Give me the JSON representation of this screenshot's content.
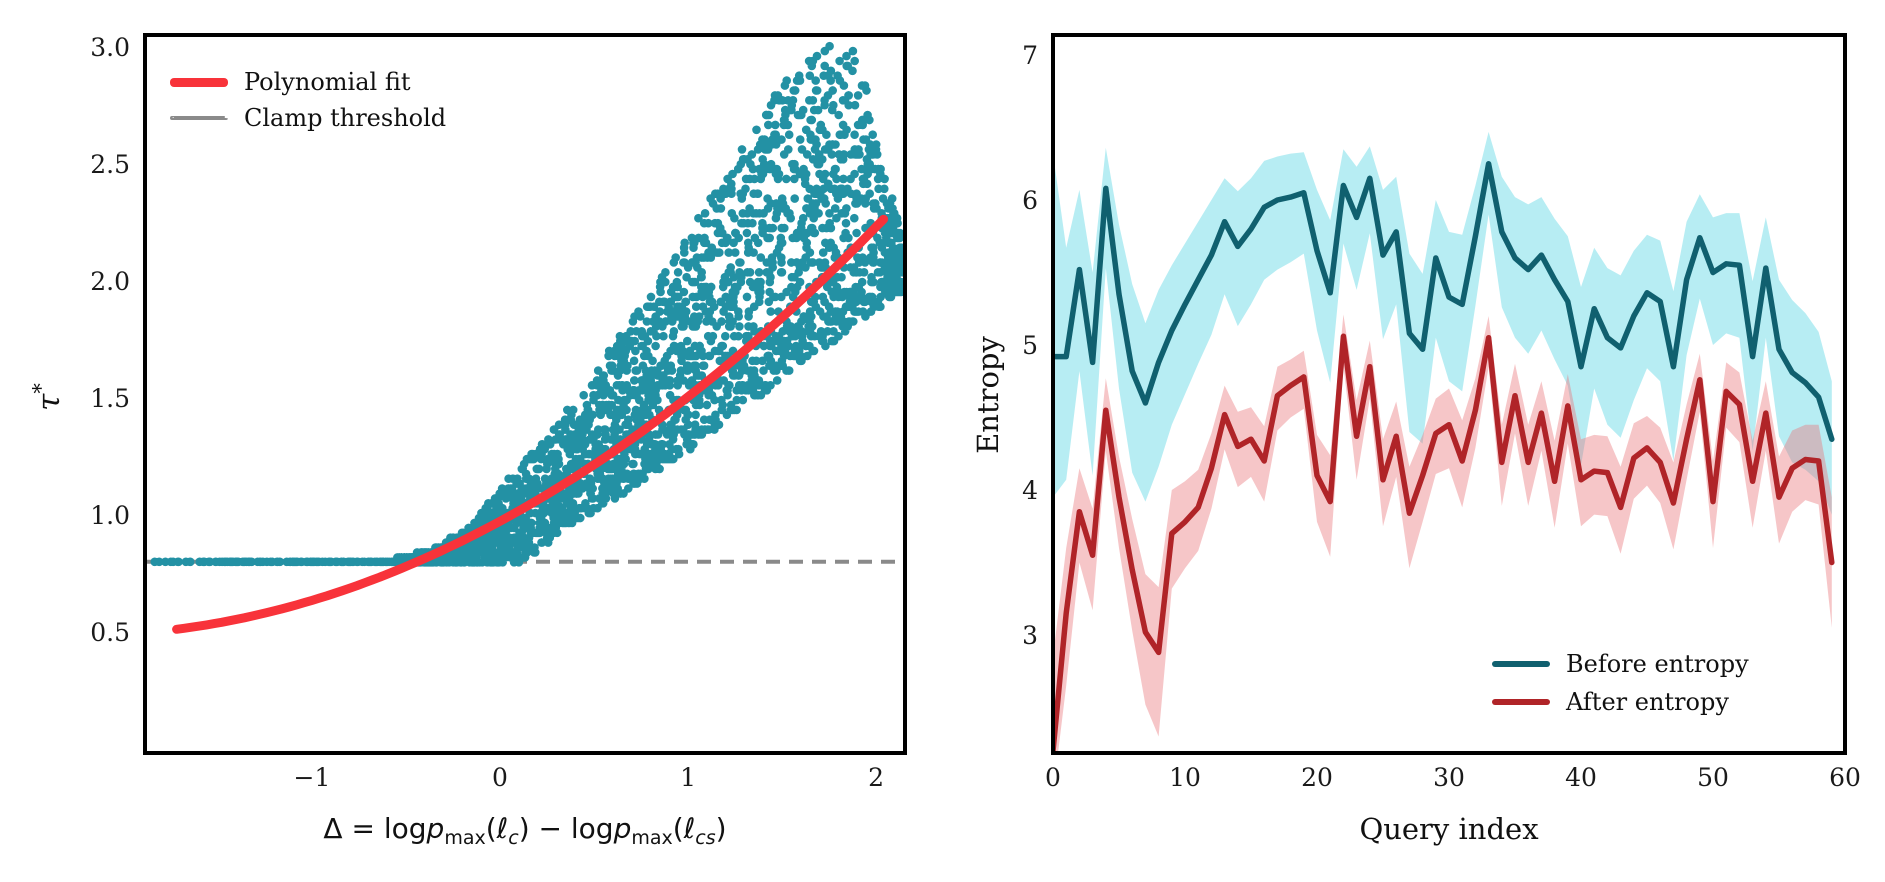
{
  "figure": {
    "background": "#ffffff"
  },
  "colors": {
    "scatter_dot": "#2391A4",
    "fit_line": "#F8333A",
    "clamp_dash": "#8A8A8A",
    "before_line": "#10606F",
    "before_band": "rgba(95,216,228,0.45)",
    "after_line": "#B02428",
    "after_band": "rgba(233,119,124,0.42)",
    "spine": "#000000",
    "tick_text": "#1a1a1a"
  },
  "chart_data": [
    {
      "type": "scatter",
      "title": "",
      "xlabel_segments": [
        {
          "t": "Δ = log",
          "s": "norm"
        },
        {
          "t": "p",
          "s": "it"
        },
        {
          "t": "max",
          "s": "sub"
        },
        {
          "t": "(",
          "s": "norm"
        },
        {
          "t": "ℓ",
          "s": "it"
        },
        {
          "t": "c",
          "s": "subit"
        },
        {
          "t": ") − log",
          "s": "norm"
        },
        {
          "t": "p",
          "s": "it"
        },
        {
          "t": "max",
          "s": "sub"
        },
        {
          "t": "(",
          "s": "norm"
        },
        {
          "t": "ℓ",
          "s": "it"
        },
        {
          "t": "cs",
          "s": "subit"
        },
        {
          "t": ")",
          "s": "norm"
        }
      ],
      "ylabel_segments": [
        {
          "t": "τ",
          "s": "norm"
        },
        {
          "t": "*",
          "s": "sup"
        }
      ],
      "xlim": [
        -1.888,
        2.154
      ],
      "ylim": [
        -0.017,
        3.051
      ],
      "xticks": [
        {
          "v": -1,
          "label": "−1"
        },
        {
          "v": 0,
          "label": "0"
        },
        {
          "v": 1,
          "label": "1"
        },
        {
          "v": 2,
          "label": "2"
        }
      ],
      "yticks": [
        {
          "v": 0.5,
          "label": "0.5"
        },
        {
          "v": 1.0,
          "label": "1.0"
        },
        {
          "v": 1.5,
          "label": "1.5"
        },
        {
          "v": 2.0,
          "label": "2.0"
        },
        {
          "v": 2.5,
          "label": "2.5"
        },
        {
          "v": 3.0,
          "label": "3.0"
        }
      ],
      "legend": [
        {
          "label": "Polynomial fit",
          "kind": "solid-red"
        },
        {
          "label": "Clamp threshold",
          "kind": "dashed-gray"
        }
      ],
      "clamp_threshold": 0.8,
      "fit_curve": {
        "coeffs": [
          0.973,
          0.435,
          0.097
        ],
        "domain": [
          -1.72,
          2.06
        ]
      },
      "scatter_cloud": {
        "seed": 1337,
        "n_fan": 2600,
        "n_clamp": 235,
        "dot_radius": 4.3,
        "tau_quantum": 0.021,
        "clamp_x_range": [
          -1.87,
          -0.2
        ],
        "fan_x_range": [
          -0.55,
          2.15
        ],
        "upper_envelope": [
          [
            -0.55,
            0.81
          ],
          [
            -0.35,
            0.86
          ],
          [
            -0.15,
            0.95
          ],
          [
            0,
            1.12
          ],
          [
            0.3,
            1.38
          ],
          [
            0.6,
            1.72
          ],
          [
            0.9,
            2.06
          ],
          [
            1.2,
            2.46
          ],
          [
            1.5,
            2.84
          ],
          [
            1.7,
            3.0
          ],
          [
            1.9,
            3.0
          ],
          [
            2.0,
            2.62
          ],
          [
            2.1,
            2.32
          ],
          [
            2.15,
            2.12
          ]
        ],
        "lower_envelope": [
          [
            -0.55,
            0.8
          ],
          [
            0.12,
            0.8
          ],
          [
            0.3,
            0.92
          ],
          [
            0.6,
            1.07
          ],
          [
            0.9,
            1.22
          ],
          [
            1.2,
            1.4
          ],
          [
            1.5,
            1.58
          ],
          [
            1.8,
            1.76
          ],
          [
            2.0,
            1.88
          ],
          [
            2.15,
            1.97
          ]
        ]
      }
    },
    {
      "type": "line",
      "title": "",
      "xlabel": "Query index",
      "ylabel": "Entropy",
      "xlim": [
        0,
        60
      ],
      "ylim": [
        2.186,
        7.138
      ],
      "xticks": [
        {
          "v": 0,
          "label": "0"
        },
        {
          "v": 10,
          "label": "10"
        },
        {
          "v": 20,
          "label": "20"
        },
        {
          "v": 30,
          "label": "30"
        },
        {
          "v": 40,
          "label": "40"
        },
        {
          "v": 50,
          "label": "50"
        },
        {
          "v": 60,
          "label": "60"
        }
      ],
      "yticks": [
        {
          "v": 3,
          "label": "3"
        },
        {
          "v": 4,
          "label": "4"
        },
        {
          "v": 5,
          "label": "5"
        },
        {
          "v": 6,
          "label": "6"
        },
        {
          "v": 7,
          "label": "7"
        }
      ],
      "legend": [
        {
          "label": "Before entropy",
          "kind": "solid-teal"
        },
        {
          "label": "After entropy",
          "kind": "solid-darkred"
        }
      ],
      "x": [
        0,
        1,
        2,
        3,
        4,
        5,
        6,
        7,
        8,
        9,
        10,
        11,
        12,
        13,
        14,
        15,
        16,
        17,
        18,
        19,
        20,
        21,
        22,
        23,
        24,
        25,
        26,
        27,
        28,
        29,
        30,
        31,
        32,
        33,
        34,
        35,
        36,
        37,
        38,
        39,
        40,
        41,
        42,
        43,
        44,
        45,
        46,
        47,
        48,
        49,
        50,
        51,
        52,
        53,
        54,
        55,
        56,
        57,
        58,
        59
      ],
      "series": [
        {
          "name": "Before entropy",
          "values": [
            4.92,
            4.92,
            5.52,
            4.88,
            6.08,
            5.35,
            4.82,
            4.6,
            4.88,
            5.1,
            5.28,
            5.45,
            5.62,
            5.85,
            5.68,
            5.8,
            5.95,
            6.0,
            6.02,
            6.05,
            5.65,
            5.36,
            6.1,
            5.88,
            6.15,
            5.62,
            5.78,
            5.08,
            4.97,
            5.6,
            5.33,
            5.28,
            5.75,
            6.25,
            5.78,
            5.6,
            5.52,
            5.62,
            5.45,
            5.3,
            4.85,
            5.25,
            5.05,
            4.98,
            5.2,
            5.36,
            5.3,
            4.85,
            5.45,
            5.74,
            5.5,
            5.56,
            5.55,
            4.92,
            5.53,
            4.97,
            4.81,
            4.74,
            4.64,
            4.35
          ],
          "band_upper_offset": [
            1.4,
            0.75,
            0.55,
            0.62,
            0.28,
            0.48,
            0.6,
            0.55,
            0.5,
            0.45,
            0.42,
            0.4,
            0.38,
            0.3,
            0.38,
            0.35,
            0.32,
            0.3,
            0.3,
            0.28,
            0.42,
            0.5,
            0.25,
            0.35,
            0.22,
            0.45,
            0.38,
            0.55,
            0.52,
            0.4,
            0.45,
            0.48,
            0.35,
            0.22,
            0.38,
            0.42,
            0.45,
            0.4,
            0.42,
            0.45,
            0.55,
            0.42,
            0.48,
            0.5,
            0.45,
            0.4,
            0.42,
            0.52,
            0.4,
            0.3,
            0.38,
            0.35,
            0.36,
            0.52,
            0.35,
            0.48,
            0.5,
            0.48,
            0.45,
            0.4
          ],
          "band_lower_offset": [
            0.97,
            0.85,
            0.7,
            0.78,
            0.55,
            0.65,
            0.7,
            0.68,
            0.72,
            0.65,
            0.62,
            0.58,
            0.55,
            0.5,
            0.55,
            0.52,
            0.5,
            0.48,
            0.45,
            0.42,
            0.55,
            0.62,
            0.4,
            0.5,
            0.38,
            0.58,
            0.5,
            0.68,
            0.65,
            0.55,
            0.58,
            0.6,
            0.48,
            0.35,
            0.52,
            0.55,
            0.58,
            0.52,
            0.55,
            0.58,
            0.68,
            0.55,
            0.6,
            0.62,
            0.58,
            0.52,
            0.55,
            0.65,
            0.52,
            0.42,
            0.5,
            0.48,
            0.5,
            0.65,
            0.48,
            0.6,
            0.62,
            0.6,
            0.58,
            0.52
          ]
        },
        {
          "name": "After entropy",
          "values": [
            2.2,
            3.15,
            3.85,
            3.55,
            4.55,
            3.95,
            3.45,
            3.02,
            2.88,
            3.7,
            3.78,
            3.88,
            4.15,
            4.52,
            4.3,
            4.35,
            4.2,
            4.65,
            4.72,
            4.78,
            4.1,
            3.92,
            5.06,
            4.37,
            4.85,
            4.07,
            4.37,
            3.84,
            4.1,
            4.39,
            4.45,
            4.2,
            4.55,
            5.05,
            4.19,
            4.65,
            4.19,
            4.53,
            4.06,
            4.58,
            4.07,
            4.13,
            4.12,
            3.88,
            4.22,
            4.29,
            4.19,
            3.91,
            4.35,
            4.76,
            3.92,
            4.68,
            4.59,
            4.06,
            4.53,
            3.95,
            4.15,
            4.21,
            4.2,
            3.5
          ],
          "band_upper_offset": [
            0.65,
            0.45,
            0.3,
            0.32,
            0.22,
            0.28,
            0.35,
            0.4,
            0.45,
            0.3,
            0.28,
            0.26,
            0.24,
            0.2,
            0.24,
            0.22,
            0.24,
            0.2,
            0.18,
            0.18,
            0.28,
            0.32,
            0.15,
            0.25,
            0.18,
            0.28,
            0.24,
            0.32,
            0.28,
            0.24,
            0.25,
            0.28,
            0.22,
            0.15,
            0.26,
            0.22,
            0.26,
            0.22,
            0.28,
            0.22,
            0.28,
            0.25,
            0.25,
            0.28,
            0.24,
            0.22,
            0.24,
            0.28,
            0.24,
            0.18,
            0.28,
            0.2,
            0.22,
            0.28,
            0.22,
            0.28,
            0.26,
            0.24,
            0.25,
            0.45
          ],
          "band_lower_offset": [
            0.3,
            0.5,
            0.35,
            0.38,
            0.28,
            0.35,
            0.42,
            0.5,
            0.58,
            0.38,
            0.32,
            0.3,
            0.28,
            0.24,
            0.28,
            0.26,
            0.28,
            0.24,
            0.22,
            0.22,
            0.32,
            0.38,
            0.2,
            0.3,
            0.22,
            0.32,
            0.28,
            0.38,
            0.32,
            0.28,
            0.3,
            0.32,
            0.26,
            0.2,
            0.3,
            0.26,
            0.3,
            0.26,
            0.32,
            0.26,
            0.32,
            0.3,
            0.3,
            0.32,
            0.28,
            0.26,
            0.28,
            0.32,
            0.28,
            0.22,
            0.32,
            0.25,
            0.26,
            0.32,
            0.26,
            0.32,
            0.3,
            0.28,
            0.3,
            0.45
          ]
        }
      ]
    }
  ]
}
